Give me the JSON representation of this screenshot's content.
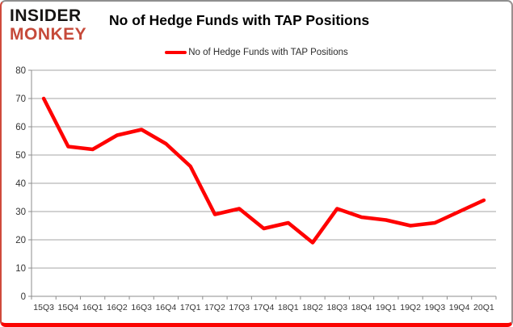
{
  "brand": {
    "line1": "INSIDER",
    "line2": "MONKEY",
    "line1_color": "#161413",
    "line2_color": "#c64a3a"
  },
  "title": "No of Hedge Funds with TAP Positions",
  "legend": {
    "label": "No of Hedge Funds with TAP Positions",
    "color": "#ff0000"
  },
  "chart_data": {
    "type": "line",
    "title": "No of Hedge Funds with TAP Positions",
    "categories": [
      "15Q3",
      "15Q4",
      "16Q1",
      "16Q2",
      "16Q3",
      "16Q4",
      "17Q1",
      "17Q2",
      "17Q3",
      "17Q4",
      "18Q1",
      "18Q2",
      "18Q3",
      "18Q4",
      "19Q1",
      "19Q2",
      "19Q3",
      "19Q4",
      "20Q1"
    ],
    "series": [
      {
        "name": "No of Hedge Funds with TAP Positions",
        "color": "#ff0000",
        "values": [
          70,
          53,
          52,
          57,
          59,
          54,
          46,
          29,
          31,
          24,
          26,
          19,
          31,
          28,
          27,
          25,
          26,
          30,
          34
        ]
      }
    ],
    "xlabel": "",
    "ylabel": "",
    "ylim": [
      0,
      80
    ],
    "ytick_step": 10,
    "grid": true,
    "legend_position": "top-center"
  },
  "chart_style": {
    "gridline_color": "#a6a6a6",
    "axis_color": "#8c8c8c",
    "tick_label_color": "#333333",
    "line_width": 4.5
  }
}
